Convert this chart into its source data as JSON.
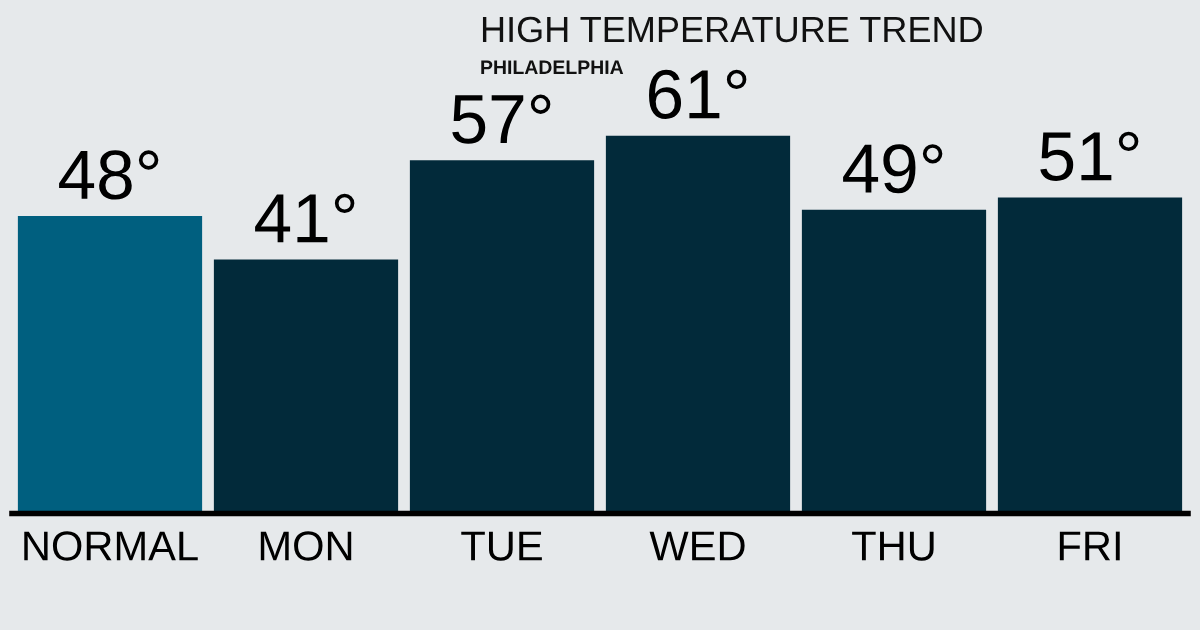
{
  "chart_data": {
    "type": "bar",
    "title": "HIGH TEMPERATURE TREND",
    "subtitle": "PHILADELPHIA",
    "categories": [
      "NORMAL",
      "MON",
      "TUE",
      "WED",
      "THU",
      "FRI"
    ],
    "values": [
      48,
      41,
      57,
      61,
      49,
      51
    ],
    "colors": [
      "#005f7f",
      "#022a3a",
      "#022a3a",
      "#022a3a",
      "#022a3a",
      "#022a3a"
    ],
    "value_labels": [
      "48°",
      "41°",
      "57°",
      "61°",
      "49°",
      "51°"
    ],
    "grid": false,
    "legend": false
  }
}
